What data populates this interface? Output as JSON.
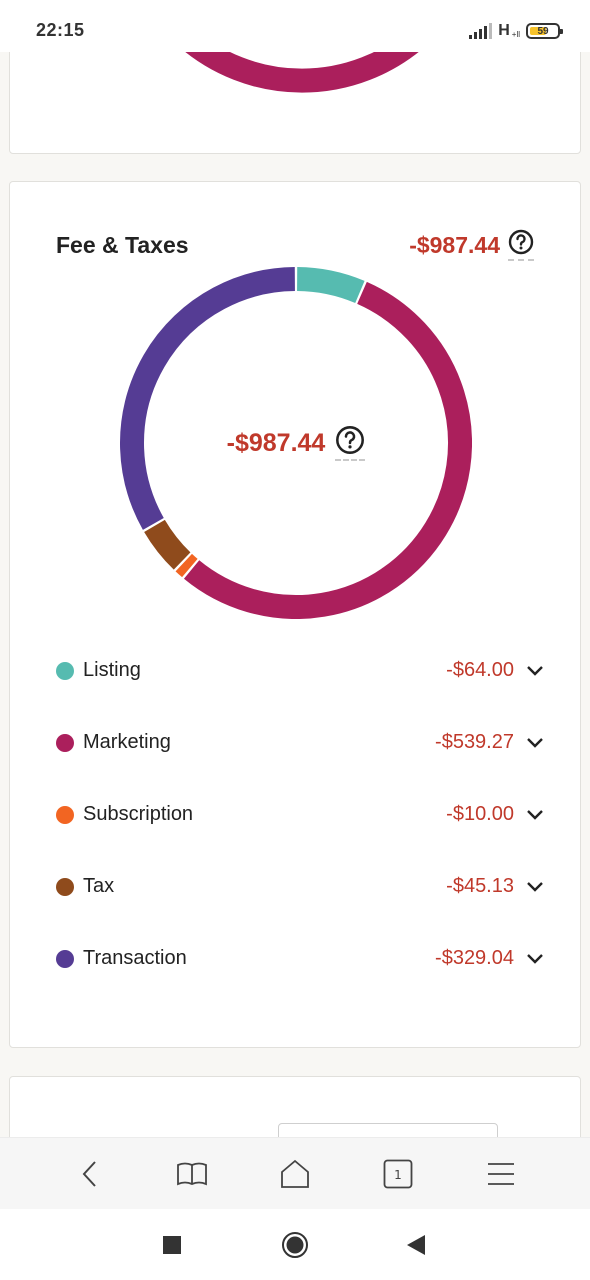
{
  "status_bar": {
    "time": "22:15",
    "network": "H",
    "network_sub": "+ll",
    "battery": "59"
  },
  "fees_card": {
    "title": "Fee & Taxes",
    "total": "-$987.44",
    "center_total": "-$987.44",
    "help_icon": "question-circle-icon"
  },
  "chart_data": {
    "type": "pie",
    "title": "Fee & Taxes",
    "center_label": "-$987.44",
    "categories": [
      "Listing",
      "Marketing",
      "Subscription",
      "Tax",
      "Transaction"
    ],
    "values": [
      64.0,
      539.27,
      10.0,
      45.13,
      329.04
    ],
    "colors": [
      "#56bbb0",
      "#ab1f5c",
      "#f26522",
      "#8f4b1c",
      "#553c94"
    ],
    "donut": true,
    "legend": "bottom"
  },
  "legend": [
    {
      "label": "Listing",
      "value": "-$64.00",
      "color": "#56bbb0"
    },
    {
      "label": "Marketing",
      "value": "-$539.27",
      "color": "#ab1f5c"
    },
    {
      "label": "Subscription",
      "value": "-$10.00",
      "color": "#f26522"
    },
    {
      "label": "Tax",
      "value": "-$45.13",
      "color": "#8f4b1c"
    },
    {
      "label": "Transaction",
      "value": "-$329.04",
      "color": "#553c94"
    }
  ],
  "browser_toolbar": {
    "tab_count": "1",
    "icons": [
      "back-icon",
      "bookmarks-icon",
      "home-icon",
      "tabs-icon",
      "menu-icon"
    ]
  },
  "system_nav": {
    "icons": [
      "recents-icon",
      "home-circle-icon",
      "back-triangle-icon"
    ]
  },
  "colors": {
    "accent_negative": "#c0392b",
    "marketing_arc": "#ab1f5c"
  }
}
